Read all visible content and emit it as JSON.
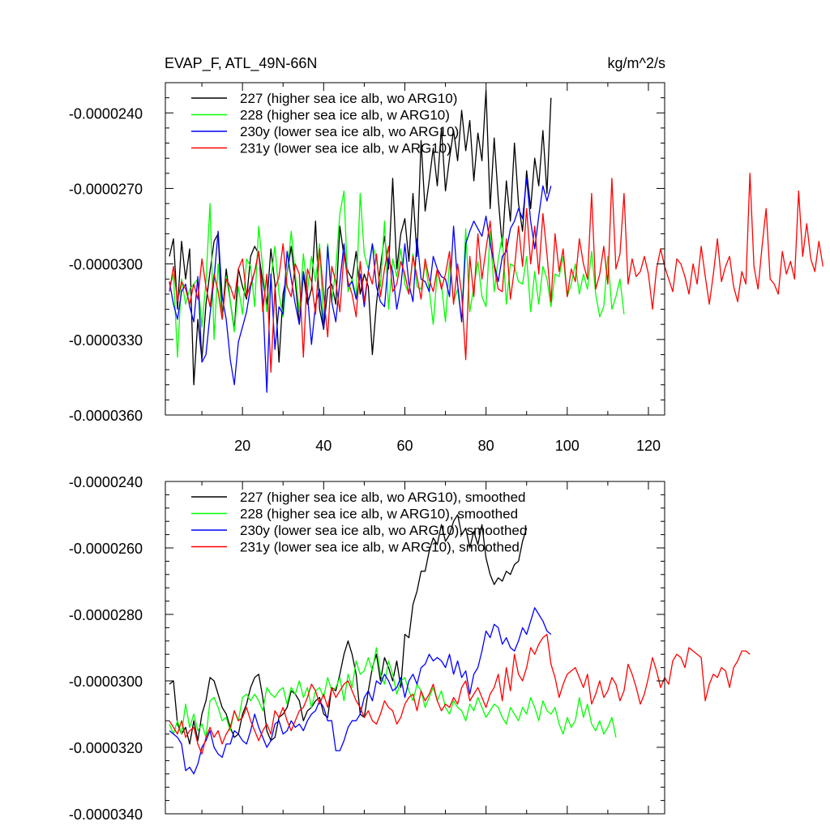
{
  "chart_data": [
    {
      "type": "line",
      "title": "EVAP_F, ATL_49N-66N",
      "units": "kg/m^2/s",
      "xlim": [
        1,
        124
      ],
      "ylim": [
        -3.6e-05,
        -2.28e-05
      ],
      "x_ticks": [
        20,
        40,
        60,
        80,
        100,
        120
      ],
      "x_tick_labels": [
        "20",
        "40",
        "60",
        "80",
        "100",
        "120"
      ],
      "y_ticks": [
        -3.6e-05,
        -3.3e-05,
        -3e-05,
        -2.7e-05,
        -2.4e-05
      ],
      "y_tick_labels": [
        "-0.0000360",
        "-0.0000330",
        "-0.0000300",
        "-0.0000270",
        "-0.0000240"
      ],
      "legend_position": "top-left",
      "series": [
        {
          "name": "227 (higher sea ice alb, wo ARG10)",
          "color": "#000000",
          "x_start": 2,
          "values": [
            -29.7,
            -29.0,
            -31.8,
            -29.1,
            -30.6,
            -29.4,
            -34.8,
            -32.2,
            -33.8,
            -31.6,
            -30.3,
            -29.1,
            -28.8,
            -32.1,
            -30.2,
            -31.5,
            -32.6,
            -30.2,
            -30.9,
            -31.4,
            -29.7,
            -29.3,
            -29.6,
            -30.7,
            -31.6,
            -29.4,
            -30.8,
            -33.9,
            -31.2,
            -30.4,
            -29.3,
            -30.7,
            -32.4,
            -30.4,
            -31.6,
            -31.0,
            -28.3,
            -31.8,
            -32.6,
            -31.0,
            -30.8,
            -31.6,
            -28.5,
            -29.7,
            -30.3,
            -30.6,
            -29.5,
            -31.2,
            -30.4,
            -30.9,
            -33.6,
            -31.6,
            -30.1,
            -28.9,
            -30.2,
            -26.6,
            -30.2,
            -28.8,
            -28.2,
            -29.9,
            -27.2,
            -29.7,
            -25.1,
            -27.9,
            -26.7,
            -25.4,
            -26.9,
            -24.6,
            -27.1,
            -25.8,
            -24.7,
            -25.9,
            -23.9,
            -25.5,
            -24.3,
            -26.7,
            -24.8,
            -25.9,
            -23.1,
            -27.8,
            -25.0,
            -27.4,
            -29.3,
            -26.7,
            -28.3,
            -25.2,
            -27.6,
            -28.7,
            -26.3,
            -27.8,
            -25.8,
            -26.9,
            -24.7,
            -27.2,
            -23.4
          ]
        },
        {
          "name": "228 (higher sea ice alb, w ARG10)",
          "color": "#00ff00",
          "x_start": 2,
          "values": [
            -31.0,
            -30.4,
            -33.7,
            -30.6,
            -31.6,
            -31.0,
            -30.8,
            -30.6,
            -32.5,
            -30.7,
            -27.6,
            -33.0,
            -30.0,
            -32.2,
            -30.5,
            -31.5,
            -32.7,
            -30.9,
            -32.0,
            -29.8,
            -30.1,
            -31.7,
            -28.5,
            -30.2,
            -31.9,
            -30.6,
            -29.3,
            -31.2,
            -32.1,
            -30.4,
            -28.7,
            -30.4,
            -31.9,
            -29.6,
            -31.1,
            -29.7,
            -30.7,
            -29.2,
            -32.4,
            -29.2,
            -31.5,
            -30.2,
            -28.0,
            -27.1,
            -31.1,
            -30.6,
            -31.3,
            -27.2,
            -29.6,
            -30.2,
            -29.2,
            -29.8,
            -30.9,
            -28.3,
            -31.8,
            -29.8,
            -30.5,
            -29.4,
            -30.8,
            -31.2,
            -29.6,
            -30.9,
            -31.0,
            -30.0,
            -31.0,
            -32.4,
            -30.3,
            -30.8,
            -32.3,
            -29.9,
            -31.5,
            -31.0,
            -32.3,
            -28.6,
            -31.9,
            -30.9,
            -29.9,
            -31.3,
            -31.7,
            -28.7,
            -31.1,
            -29.8,
            -28.9,
            -31.6,
            -30.0,
            -30.1,
            -30.7,
            -30.8,
            -29.7,
            -31.9,
            -30.3,
            -31.6,
            -30.1,
            -30.6,
            -31.7,
            -30.4,
            -30.5,
            -29.7,
            -31.3,
            -30.8,
            -30.0,
            -31.2,
            -30.4,
            -31.0,
            -29.5,
            -31.2,
            -32.1,
            -31.7,
            -29.7,
            -31.8,
            -31.3,
            -30.6,
            -32.0
          ]
        },
        {
          "name": "230y (lower sea ice alb, wo ARG10)",
          "color": "#0000ff",
          "x_start": 2,
          "values": [
            -30.7,
            -31.6,
            -32.2,
            -31.1,
            -30.8,
            -31.7,
            -32.3,
            -30.5,
            -33.9,
            -33.6,
            -32.0,
            -30.6,
            -28.7,
            -31.3,
            -32.2,
            -33.8,
            -34.8,
            -33.1,
            -32.5,
            -31.9,
            -30.9,
            -30.3,
            -29.5,
            -31.4,
            -35.1,
            -30.4,
            -33.4,
            -31.7,
            -32.0,
            -29.5,
            -30.6,
            -31.6,
            -32.4,
            -30.3,
            -31.2,
            -33.2,
            -31.6,
            -31.0,
            -32.6,
            -29.3,
            -31.5,
            -32.3,
            -30.7,
            -29.2,
            -30.9,
            -30.7,
            -31.4,
            -30.4,
            -31.7,
            -30.3,
            -29.2,
            -30.9,
            -31.5,
            -31.7,
            -29.8,
            -30.3,
            -31.8,
            -30.9,
            -29.2,
            -30.8,
            -31.5,
            -29.0,
            -30.6,
            -30.7,
            -31.1,
            -29.7,
            -30.2,
            -30.5,
            -30.6,
            -31.3,
            -28.5,
            -30.8,
            -32.3,
            -29.2,
            -28.7,
            -28.3,
            -28.6,
            -28.9,
            -28.1,
            -29.2,
            -30.0,
            -30.7,
            -29.7,
            -29.5,
            -28.6,
            -28.3,
            -27.8,
            -28.2,
            -26.6,
            -28.3,
            -29.4,
            -28.1,
            -26.9,
            -27.5,
            -26.9
          ]
        },
        {
          "name": "231y (lower sea ice alb, w ARG10)",
          "color": "#ff0000",
          "x_start": 2,
          "values": [
            -31.1,
            -30.1,
            -31.5,
            -30.7,
            -31.0,
            -31.6,
            -30.8,
            -31.4,
            -29.8,
            -30.9,
            -31.7,
            -30.4,
            -31.1,
            -32.2,
            -30.6,
            -30.9,
            -31.4,
            -30.2,
            -29.8,
            -31.3,
            -30.8,
            -30.3,
            -29.5,
            -31.9,
            -30.4,
            -34.3,
            -31.0,
            -30.5,
            -29.2,
            -30.9,
            -31.3,
            -30.0,
            -30.4,
            -33.7,
            -30.2,
            -30.7,
            -32.0,
            -29.4,
            -31.2,
            -32.9,
            -30.1,
            -30.7,
            -31.9,
            -29.6,
            -30.7,
            -31.2,
            -32.1,
            -29.9,
            -31.5,
            -30.3,
            -30.8,
            -29.6,
            -31.3,
            -30.2,
            -29.3,
            -31.1,
            -30.8,
            -29.9,
            -30.4,
            -31.2,
            -29.7,
            -30.5,
            -31.4,
            -29.8,
            -30.6,
            -31.1,
            -30.2,
            -31.0,
            -30.4,
            -29.5,
            -31.6,
            -30.0,
            -31.2,
            -33.8,
            -29.7,
            -31.3,
            -28.8,
            -30.6,
            -29.4,
            -28.3,
            -30.1,
            -31.0,
            -31.1,
            -29.0,
            -31.4,
            -30.2,
            -28.5,
            -30.1,
            -27.8,
            -30.0,
            -28.5,
            -30.4,
            -28.0,
            -29.6,
            -31.5,
            -28.8,
            -30.3,
            -29.4,
            -31.3,
            -30.2,
            -30.7,
            -29.0,
            -30.0,
            -30.6,
            -27.2,
            -31.0,
            -30.4,
            -29.3,
            -30.8,
            -26.6,
            -30.2,
            -29.6,
            -27.2,
            -30.8,
            -29.8,
            -30.5,
            -30.3,
            -29.7,
            -30.4,
            -31.8,
            -30.2,
            -29.4,
            -30.1,
            -30.6,
            -31.1,
            -29.8,
            -30.0,
            -30.5,
            -31.2,
            -30.0,
            -30.8,
            -29.3,
            -30.5,
            -31.6,
            -30.4,
            -29.0,
            -30.7,
            -30.1,
            -29.7,
            -30.9,
            -31.5,
            -30.3,
            -30.8,
            -26.4,
            -30.1,
            -31.0,
            -29.3,
            -27.8,
            -30.6,
            -30.8,
            -31.2,
            -29.5,
            -30.4,
            -29.9,
            -30.6,
            -27.1,
            -29.7,
            -28.4,
            -29.8,
            -30.3,
            -29.1,
            -30.1
          ]
        }
      ]
    },
    {
      "type": "line",
      "title": "",
      "ylim": [
        -3.4e-05,
        -2.4e-05
      ],
      "xlim": [
        1,
        124
      ],
      "y_ticks": [
        -3.4e-05,
        -3.2e-05,
        -3e-05,
        -2.8e-05,
        -2.6e-05,
        -2.4e-05
      ],
      "y_tick_labels": [
        "-0.0000340",
        "-0.0000320",
        "-0.0000300",
        "-0.0000280",
        "-0.0000260",
        "-0.0000240"
      ],
      "x_ticks": [
        20,
        40,
        60,
        80,
        100,
        120
      ],
      "legend_position": "top-left",
      "series": [
        {
          "name": "227 (higher sea ice alb, wo ARG10), smoothed",
          "color": "#000000",
          "x_start": 2,
          "values": [
            -30.1,
            -30.0,
            -31.3,
            -31.6,
            -31.4,
            -31.9,
            -31.2,
            -31.8,
            -31.0,
            -30.6,
            -29.9,
            -30.0,
            -30.4,
            -30.8,
            -31.0,
            -31.4,
            -31.7,
            -31.6,
            -31.0,
            -30.7,
            -30.2,
            -29.9,
            -29.8,
            -30.5,
            -31.5,
            -31.8,
            -31.7,
            -31.1,
            -31.0,
            -30.8,
            -30.3,
            -30.4,
            -30.6,
            -31.2,
            -30.9,
            -30.8,
            -30.6,
            -30.5,
            -31.0,
            -31.1,
            -30.2,
            -30.3,
            -29.8,
            -29.2,
            -28.8,
            -29.2,
            -29.8,
            -31.0,
            -31.1,
            -30.3,
            -29.6,
            -29.2,
            -30.0,
            -29.3,
            -29.6,
            -30.0,
            -29.4,
            -30.2,
            -28.6,
            -28.7,
            -27.7,
            -27.3,
            -26.7,
            -26.7,
            -26.1,
            -25.7,
            -25.9,
            -25.3,
            -25.8,
            -25.6,
            -25.2,
            -25.0,
            -25.6,
            -25.4,
            -26.0,
            -25.5,
            -25.9,
            -25.3,
            -26.3,
            -26.8,
            -27.1,
            -26.9,
            -27.0,
            -26.7,
            -26.8,
            -26.5,
            -26.4,
            -25.8,
            -25.4
          ]
        },
        {
          "name": "228 (higher sea ice alb, w ARG10), smoothed",
          "color": "#00ff00",
          "x_start": 2,
          "values": [
            -31.3,
            -31.6,
            -31.2,
            -31.6,
            -30.7,
            -31.4,
            -31.0,
            -31.5,
            -31.3,
            -31.7,
            -30.6,
            -30.5,
            -30.8,
            -31.2,
            -31.1,
            -31.5,
            -30.9,
            -31.2,
            -30.5,
            -30.4,
            -30.6,
            -30.4,
            -30.6,
            -30.9,
            -30.2,
            -30.4,
            -30.5,
            -30.3,
            -30.2,
            -30.7,
            -30.2,
            -30.4,
            -30.0,
            -30.5,
            -30.2,
            -30.8,
            -30.3,
            -30.2,
            -30.5,
            -29.9,
            -30.3,
            -30.2,
            -29.9,
            -30.6,
            -29.8,
            -30.2,
            -29.4,
            -29.8,
            -29.7,
            -29.3,
            -29.7,
            -29.0,
            -29.8,
            -30.1,
            -29.4,
            -29.8,
            -30.4,
            -30.0,
            -29.9,
            -30.3,
            -30.6,
            -30.1,
            -30.3,
            -30.8,
            -30.5,
            -30.2,
            -30.6,
            -30.3,
            -30.8,
            -31.0,
            -30.6,
            -30.8,
            -30.9,
            -31.2,
            -30.7,
            -30.9,
            -30.5,
            -30.8,
            -31.1,
            -30.9,
            -30.7,
            -30.8,
            -31.1,
            -31.3,
            -30.8,
            -31.0,
            -31.2,
            -30.8,
            -31.0,
            -30.5,
            -30.8,
            -31.2,
            -30.6,
            -30.9,
            -31.0,
            -30.8,
            -31.3,
            -31.6,
            -31.1,
            -31.4,
            -31.2,
            -30.5,
            -31.1,
            -30.7,
            -31.3,
            -31.5,
            -31.2,
            -31.6,
            -31.4,
            -31.1,
            -31.7
          ]
        },
        {
          "name": "230y (lower sea ice alb, wo ARG10), smoothed",
          "color": "#0000ff",
          "x_start": 2,
          "values": [
            -31.5,
            -31.6,
            -31.7,
            -31.9,
            -32.7,
            -32.6,
            -32.8,
            -32.5,
            -32.0,
            -31.8,
            -31.5,
            -32.0,
            -32.2,
            -32.3,
            -31.9,
            -31.9,
            -31.5,
            -31.6,
            -31.8,
            -31.9,
            -31.5,
            -31.0,
            -31.4,
            -31.7,
            -32.0,
            -31.8,
            -31.3,
            -31.2,
            -31.6,
            -31.5,
            -31.2,
            -31.4,
            -31.3,
            -31.5,
            -31.2,
            -31.0,
            -30.9,
            -30.6,
            -30.8,
            -31.2,
            -31.2,
            -32.1,
            -32.1,
            -31.8,
            -31.4,
            -31.2,
            -31.2,
            -31.0,
            -30.5,
            -30.3,
            -30.6,
            -30.0,
            -30.1,
            -29.8,
            -30.0,
            -30.3,
            -30.2,
            -29.9,
            -30.5,
            -30.0,
            -29.8,
            -30.1,
            -29.6,
            -29.5,
            -29.2,
            -29.4,
            -29.3,
            -29.4,
            -29.6,
            -29.2,
            -29.8,
            -29.4,
            -29.9,
            -29.7,
            -30.4,
            -29.8,
            -29.6,
            -29.1,
            -28.5,
            -28.7,
            -28.3,
            -28.4,
            -28.9,
            -28.7,
            -29.0,
            -29.1,
            -28.8,
            -28.4,
            -28.6,
            -28.2,
            -27.8,
            -28.0,
            -28.2,
            -28.5,
            -28.6
          ]
        },
        {
          "name": "231y (lower sea ice alb, w ARG10), smoothed",
          "color": "#ff0000",
          "x_start": 2,
          "values": [
            -31.2,
            -31.4,
            -31.6,
            -31.2,
            -31.7,
            -31.5,
            -31.4,
            -31.9,
            -32.2,
            -31.7,
            -31.4,
            -31.7,
            -31.5,
            -31.9,
            -31.6,
            -31.4,
            -30.9,
            -31.2,
            -31.1,
            -30.8,
            -31.2,
            -31.5,
            -31.8,
            -31.5,
            -31.3,
            -31.6,
            -30.9,
            -31.1,
            -30.8,
            -31.2,
            -31.5,
            -31.2,
            -30.9,
            -30.8,
            -30.5,
            -30.1,
            -30.3,
            -30.7,
            -30.4,
            -30.8,
            -30.2,
            -30.5,
            -30.3,
            -30.1,
            -30.0,
            -30.3,
            -30.6,
            -30.8,
            -31.1,
            -30.9,
            -31.2,
            -31.3,
            -31.0,
            -30.6,
            -30.8,
            -30.9,
            -31.3,
            -31.1,
            -30.7,
            -30.5,
            -30.4,
            -30.9,
            -30.3,
            -30.6,
            -30.4,
            -30.1,
            -30.6,
            -30.9,
            -30.7,
            -30.8,
            -30.5,
            -30.7,
            -30.2,
            -30.0,
            -30.6,
            -30.4,
            -30.2,
            -30.5,
            -30.8,
            -30.4,
            -30.2,
            -29.8,
            -30.6,
            -29.6,
            -30.3,
            -29.2,
            -29.8,
            -30.0,
            -29.6,
            -29.0,
            -29.2,
            -28.9,
            -28.7,
            -28.6,
            -29.5,
            -29.9,
            -30.5,
            -30.1,
            -29.8,
            -29.7,
            -29.6,
            -29.9,
            -30.2,
            -29.8,
            -30.7,
            -30.4,
            -30.0,
            -30.5,
            -30.3,
            -29.9,
            -30.1,
            -30.6,
            -30.3,
            -29.5,
            -29.8,
            -30.2,
            -30.7,
            -30.4,
            -29.9,
            -29.3,
            -29.7,
            -30.2,
            -29.9,
            -30.1,
            -29.4,
            -29.2,
            -29.3,
            -29.6,
            -29.0,
            -29.1,
            -29.2,
            -29.3,
            -30.6,
            -30.1,
            -29.8,
            -29.9,
            -29.6,
            -29.7,
            -30.2,
            -29.6,
            -29.4,
            -29.1,
            -29.1,
            -29.2
          ]
        }
      ]
    }
  ]
}
